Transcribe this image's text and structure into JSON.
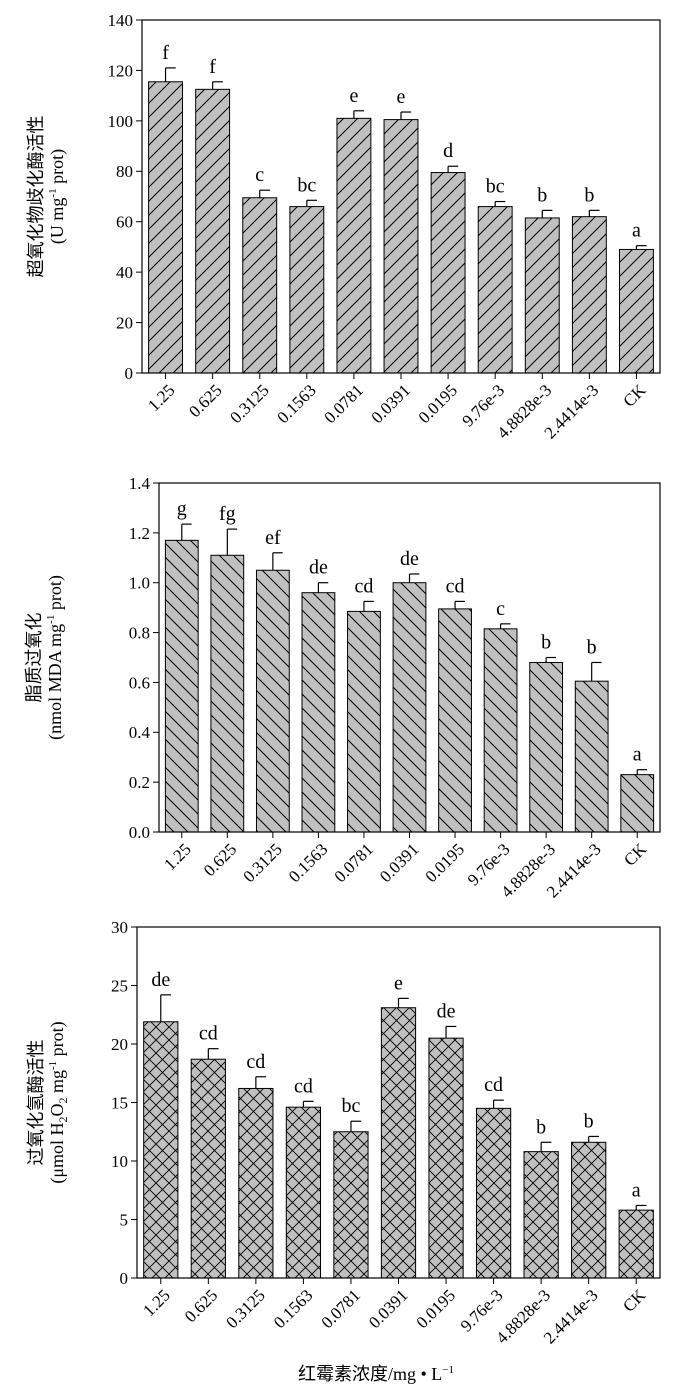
{
  "chart_data": [
    {
      "type": "bar",
      "categories": [
        "1.25",
        "0.625",
        "0.3125",
        "0.1563",
        "0.0781",
        "0.0391",
        "0.0195",
        "9.76e-3",
        "4.8828e-3",
        "2.4414e-3",
        "CK"
      ],
      "values": [
        115.5,
        112.5,
        69.5,
        66,
        101,
        100.5,
        79.5,
        66,
        61.5,
        62,
        49
      ],
      "errors": [
        5.5,
        3,
        3,
        2.5,
        3,
        3,
        2.5,
        2,
        3,
        2.5,
        1.5
      ],
      "significance": [
        "f",
        "f",
        "c",
        "bc",
        "e",
        "e",
        "d",
        "bc",
        "b",
        "b",
        "a"
      ],
      "ylabel_line1": "超氧化物歧化酶活性",
      "ylabel_line2": "(U mg",
      "ylabel_line2_sup": "-1",
      "ylabel_line2_end": " prot)",
      "yticks": [
        "0",
        "20",
        "40",
        "60",
        "80",
        "100",
        "120",
        "140"
      ],
      "ylim": [
        0,
        140
      ],
      "pattern": "forward-diagonal",
      "bar_color": "#c0c0c0"
    },
    {
      "type": "bar",
      "categories": [
        "1.25",
        "0.625",
        "0.3125",
        "0.1563",
        "0.0781",
        "0.0391",
        "0.0195",
        "9.76e-3",
        "4.8828e-3",
        "2.4414e-3",
        "CK"
      ],
      "values": [
        1.17,
        1.11,
        1.05,
        0.96,
        0.885,
        1.0,
        0.895,
        0.815,
        0.68,
        0.605,
        0.23
      ],
      "errors": [
        0.065,
        0.105,
        0.07,
        0.04,
        0.04,
        0.035,
        0.03,
        0.02,
        0.02,
        0.075,
        0.02
      ],
      "significance": [
        "g",
        "fg",
        "ef",
        "de",
        "cd",
        "de",
        "cd",
        "c",
        "b",
        "b",
        "a"
      ],
      "ylabel_line1": "脂质过氧化",
      "ylabel_line2": "(nmol MDA mg",
      "ylabel_line2_sup": "-1",
      "ylabel_line2_end": " prot)",
      "yticks": [
        "0.0",
        "0.2",
        "0.4",
        "0.6",
        "0.8",
        "1.0",
        "1.2",
        "1.4"
      ],
      "ylim": [
        0,
        1.4
      ],
      "pattern": "back-diagonal",
      "bar_color": "#c0c0c0"
    },
    {
      "type": "bar",
      "categories": [
        "1.25",
        "0.625",
        "0.3125",
        "0.1563",
        "0.0781",
        "0.0391",
        "0.0195",
        "9.76e-3",
        "4.8828e-3",
        "2.4414e-3",
        "CK"
      ],
      "values": [
        21.9,
        18.7,
        16.2,
        14.6,
        12.5,
        23.1,
        20.5,
        14.5,
        10.8,
        11.6,
        5.8
      ],
      "errors": [
        2.3,
        0.9,
        1.0,
        0.5,
        0.9,
        0.8,
        1.0,
        0.7,
        0.8,
        0.5,
        0.4
      ],
      "significance": [
        "de",
        "cd",
        "cd",
        "cd",
        "bc",
        "e",
        "de",
        "cd",
        "b",
        "b",
        "a"
      ],
      "ylabel_line1": "过氧化氢酶活性",
      "ylabel_line2": "(μmol H",
      "ylabel_line2_sub": "2",
      "ylabel_line2_mid": "O",
      "ylabel_line2_sub2": "2",
      "ylabel_line2_mid2": " mg",
      "ylabel_line2_sup": "-1",
      "ylabel_line2_end": " prot)",
      "yticks": [
        "0",
        "5",
        "10",
        "15",
        "20",
        "25",
        "30"
      ],
      "ylim": [
        0,
        30
      ],
      "pattern": "crosshatch",
      "bar_color": "#c0c0c0"
    }
  ],
  "xlabel": "红霉素浓度/mg • L",
  "xlabel_sup": "−1"
}
